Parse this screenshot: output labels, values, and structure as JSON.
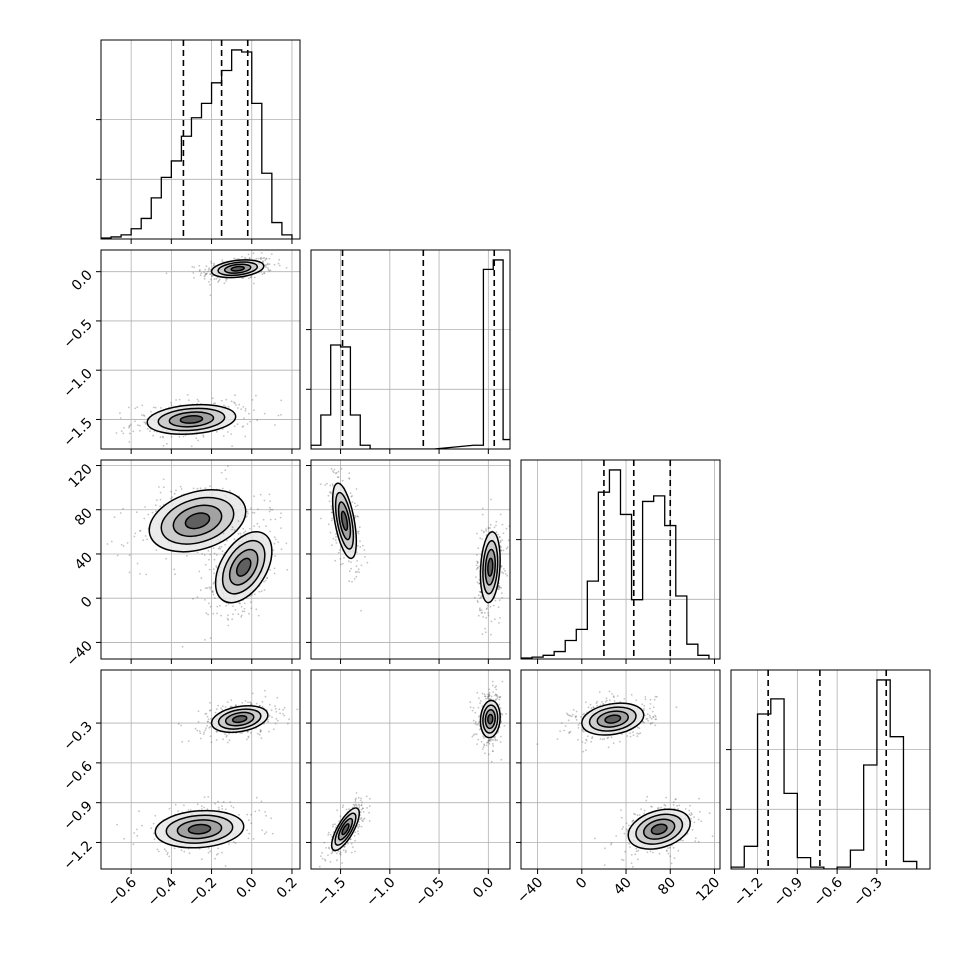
{
  "chart_data": {
    "type": "corner",
    "n_params": 4,
    "grid": true,
    "quantile_lines": "dashed",
    "colors": {
      "line": "#000000",
      "grid": "#b0b0b0",
      "points": "#555555"
    },
    "params": [
      {
        "lim": [
          -0.75,
          0.24
        ],
        "ticks": [
          -0.6,
          -0.4,
          -0.2,
          0.0,
          0.2
        ],
        "tick_labels": [
          "−0.6",
          "−0.4",
          "−0.2",
          "0.0",
          "0.2"
        ]
      },
      {
        "lim": [
          -1.8,
          0.22
        ],
        "ticks": [
          -1.5,
          -1.0,
          -0.5,
          0.0
        ],
        "tick_labels": [
          "−1.5",
          "−1.0",
          "−0.5",
          "0.0"
        ]
      },
      {
        "lim": [
          -55,
          125
        ],
        "ticks": [
          -40,
          0,
          40,
          80,
          120
        ],
        "tick_labels": [
          "−40",
          "0",
          "40",
          "80",
          "120"
        ]
      },
      {
        "lim": [
          -1.4,
          0.1
        ],
        "ticks": [
          -1.2,
          -0.9,
          -0.6,
          -0.3
        ],
        "tick_labels": [
          "−1.2",
          "−0.9",
          "−0.6",
          "−0.3"
        ]
      }
    ],
    "quantiles": [
      [
        -0.34,
        -0.15,
        -0.02
      ],
      [
        -1.48,
        -0.66,
        0.06
      ],
      [
        20,
        47,
        80
      ],
      [
        -1.12,
        -0.73,
        -0.23
      ]
    ],
    "histograms": [
      {
        "x": [
          -0.725,
          -0.675,
          -0.625,
          -0.575,
          -0.525,
          -0.475,
          -0.425,
          -0.375,
          -0.325,
          -0.275,
          -0.225,
          -0.175,
          -0.125,
          -0.075,
          -0.025,
          0.025,
          0.075,
          0.125,
          0.175
        ],
        "counts": [
          0.5,
          1,
          2,
          5,
          10,
          20,
          30,
          38,
          50,
          59,
          66,
          76,
          82,
          92,
          91,
          66,
          32,
          8,
          2
        ]
      },
      {
        "x": [
          -1.75,
          -1.65,
          -1.55,
          -1.45,
          -1.35,
          -1.25,
          -1.15,
          -0.6,
          -0.1,
          0.0,
          0.1,
          0.2
        ],
        "counts": [
          2,
          18,
          55,
          54,
          18,
          2,
          0,
          0,
          2,
          95,
          100,
          5
        ]
      },
      {
        "x": [
          -50,
          -40,
          -30,
          -20,
          -10,
          0,
          10,
          20,
          30,
          40,
          50,
          60,
          70,
          80,
          90,
          100,
          110
        ],
        "counts": [
          0.5,
          1,
          2,
          4,
          10,
          16,
          42,
          90,
          102,
          78,
          32,
          85,
          88,
          72,
          34,
          8,
          2
        ]
      },
      {
        "x": [
          -1.35,
          -1.25,
          -1.15,
          -1.05,
          -0.95,
          -0.85,
          -0.75,
          -0.65,
          -0.55,
          -0.45,
          -0.35,
          -0.25,
          -0.15,
          -0.05
        ],
        "counts": [
          1,
          12,
          82,
          90,
          40,
          6,
          1,
          0,
          1,
          10,
          55,
          100,
          70,
          4
        ]
      }
    ],
    "mode_blobs": [
      {
        "pair": [
          1,
          0
        ],
        "modes": [
          {
            "center": [
              -0.07,
              0.03
            ],
            "sd": [
              0.065,
              0.045
            ],
            "rho": 0.3,
            "weight": 0.55
          },
          {
            "center": [
              -0.3,
              -1.5
            ],
            "sd": [
              0.11,
              0.075
            ],
            "rho": 0.2,
            "weight": 0.45
          }
        ]
      },
      {
        "pair": [
          2,
          0
        ],
        "modes": [
          {
            "center": [
              -0.27,
              70
            ],
            "sd": [
              0.12,
              14
            ],
            "rho": 0.3,
            "weight": 0.45
          },
          {
            "center": [
              -0.04,
              28
            ],
            "sd": [
              0.07,
              16
            ],
            "rho": 0.45,
            "weight": 0.55
          }
        ]
      },
      {
        "pair": [
          2,
          1
        ],
        "modes": [
          {
            "center": [
              -1.46,
              70
            ],
            "sd": [
              0.06,
              17
            ],
            "rho": -0.55,
            "weight": 0.45
          },
          {
            "center": [
              0.02,
              28
            ],
            "sd": [
              0.05,
              16
            ],
            "rho": 0.2,
            "weight": 0.55
          }
        ]
      },
      {
        "pair": [
          3,
          0
        ],
        "modes": [
          {
            "center": [
              -0.06,
              -0.27
            ],
            "sd": [
              0.07,
              0.05
            ],
            "rho": 0.3,
            "weight": 0.55
          },
          {
            "center": [
              -0.26,
              -1.1
            ],
            "sd": [
              0.11,
              0.07
            ],
            "rho": 0.15,
            "weight": 0.45
          }
        ]
      },
      {
        "pair": [
          3,
          1
        ],
        "modes": [
          {
            "center": [
              0.02,
              -0.27
            ],
            "sd": [
              0.05,
              0.07
            ],
            "rho": 0.1,
            "weight": 0.55
          },
          {
            "center": [
              -1.45,
              -1.1
            ],
            "sd": [
              0.07,
              0.08
            ],
            "rho": 0.75,
            "weight": 0.45
          }
        ]
      },
      {
        "pair": [
          3,
          2
        ],
        "modes": [
          {
            "center": [
              28,
              -0.27
            ],
            "sd": [
              14,
              0.06
            ],
            "rho": 0.25,
            "weight": 0.55
          },
          {
            "center": [
              70,
              -1.1
            ],
            "sd": [
              14,
              0.075
            ],
            "rho": 0.3,
            "weight": 0.45
          }
        ]
      }
    ],
    "contour_levels_sigma": [
      0.5,
      1.0,
      1.5,
      2.0
    ]
  }
}
